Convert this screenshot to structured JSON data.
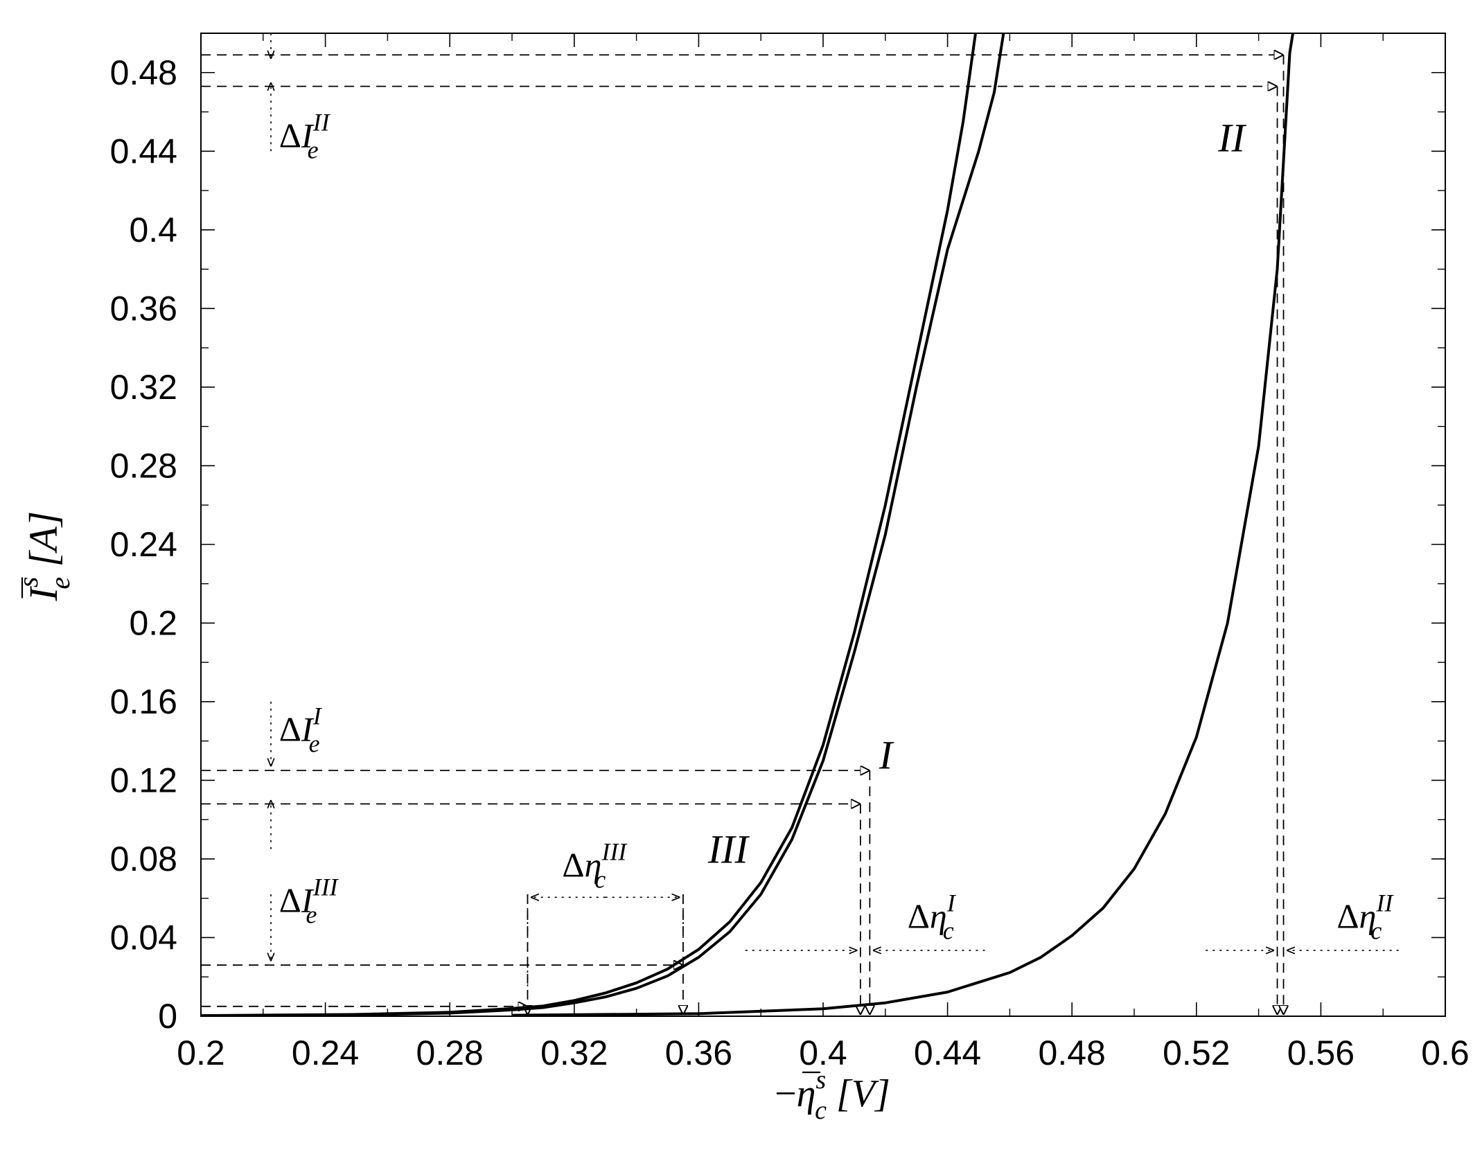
{
  "chart_data": {
    "type": "line",
    "xlim": [
      0.2,
      0.6
    ],
    "ylim": [
      0,
      0.5
    ],
    "grid": false,
    "legend": "none",
    "x_ticks": [
      0.2,
      0.24,
      0.28,
      0.32,
      0.36,
      0.4,
      0.44,
      0.48,
      0.52,
      0.56,
      0.6
    ],
    "x_tick_labels": [
      "0.2",
      "0.24",
      "0.28",
      "0.32",
      "0.36",
      "0.4",
      "0.44",
      "0.48",
      "0.52",
      "0.56",
      "0.6"
    ],
    "y_ticks": [
      0,
      0.04,
      0.08,
      0.12,
      0.16,
      0.2,
      0.24,
      0.28,
      0.32,
      0.36,
      0.4,
      0.44,
      0.48
    ],
    "y_tick_labels": [
      "0",
      "0.04",
      "0.08",
      "0.12",
      "0.16",
      "0.2",
      "0.24",
      "0.28",
      "0.32",
      "0.36",
      "0.4",
      "0.44",
      "0.48"
    ],
    "xlabel": {
      "prefix": "−",
      "symbol": "η",
      "superscript": "s",
      "subscript": "c",
      "unit": "[V]"
    },
    "ylabel": {
      "symbol": "I",
      "superscript": "s",
      "subscript": "e",
      "unit": "[A]"
    },
    "series": [
      {
        "name": "I",
        "label_at": [
          0.418,
          0.126
        ],
        "points": [
          [
            0.2,
            0.0002
          ],
          [
            0.25,
            0.0007
          ],
          [
            0.28,
            0.0016
          ],
          [
            0.3,
            0.0032
          ],
          [
            0.31,
            0.0044
          ],
          [
            0.32,
            0.0068
          ],
          [
            0.33,
            0.0098
          ],
          [
            0.34,
            0.0142
          ],
          [
            0.35,
            0.0205
          ],
          [
            0.36,
            0.03
          ],
          [
            0.37,
            0.043
          ],
          [
            0.38,
            0.062
          ],
          [
            0.39,
            0.09
          ],
          [
            0.4,
            0.13
          ],
          [
            0.41,
            0.185
          ],
          [
            0.42,
            0.245
          ],
          [
            0.43,
            0.32
          ],
          [
            0.44,
            0.39
          ],
          [
            0.45,
            0.44
          ],
          [
            0.455,
            0.47
          ],
          [
            0.458,
            0.5
          ]
        ]
      },
      {
        "name": "II",
        "label_at": [
          0.527,
          0.44
        ],
        "points": [
          [
            0.3,
            0.0005
          ],
          [
            0.36,
            0.0013
          ],
          [
            0.4,
            0.0038
          ],
          [
            0.42,
            0.0068
          ],
          [
            0.44,
            0.0123
          ],
          [
            0.46,
            0.0222
          ],
          [
            0.47,
            0.03
          ],
          [
            0.48,
            0.041
          ],
          [
            0.49,
            0.055
          ],
          [
            0.5,
            0.075
          ],
          [
            0.51,
            0.103
          ],
          [
            0.52,
            0.142
          ],
          [
            0.53,
            0.2
          ],
          [
            0.54,
            0.29
          ],
          [
            0.546,
            0.38
          ],
          [
            0.55,
            0.49
          ],
          [
            0.551,
            0.5
          ]
        ]
      },
      {
        "name": "III",
        "label_at": [
          0.363,
          0.078
        ],
        "points": [
          [
            0.2,
            0.0003
          ],
          [
            0.25,
            0.0009
          ],
          [
            0.28,
            0.002
          ],
          [
            0.3,
            0.0039
          ],
          [
            0.31,
            0.0052
          ],
          [
            0.32,
            0.008
          ],
          [
            0.33,
            0.0118
          ],
          [
            0.34,
            0.017
          ],
          [
            0.35,
            0.024
          ],
          [
            0.36,
            0.034
          ],
          [
            0.37,
            0.048
          ],
          [
            0.38,
            0.068
          ],
          [
            0.39,
            0.096
          ],
          [
            0.4,
            0.138
          ],
          [
            0.41,
            0.195
          ],
          [
            0.42,
            0.26
          ],
          [
            0.43,
            0.335
          ],
          [
            0.44,
            0.41
          ],
          [
            0.445,
            0.455
          ],
          [
            0.449,
            0.5
          ]
        ]
      }
    ],
    "annotations": {
      "h_lines": [
        0.489,
        0.473,
        0.125,
        0.108,
        0.026,
        0.005
      ],
      "v_lines": [
        {
          "x": 0.305,
          "y_top": 0.062
        },
        {
          "x": 0.355,
          "y_top": 0.062
        },
        {
          "x": 0.412,
          "y_top": 0.108
        },
        {
          "x": 0.415,
          "y_top": 0.125
        },
        {
          "x": 0.546,
          "y_top": 0.473
        },
        {
          "x": 0.548,
          "y_top": 0.489
        }
      ],
      "delta_labels": [
        {
          "id": "dIe_II",
          "text": "ΔI",
          "sub": "e",
          "sup": "II",
          "x": 0.222,
          "y": 0.442
        },
        {
          "id": "dIe_I",
          "text": "ΔI",
          "sub": "e",
          "sup": "I",
          "x": 0.222,
          "y": 0.14
        },
        {
          "id": "dIe_III",
          "text": "ΔI",
          "sub": "e",
          "sup": "III",
          "x": 0.222,
          "y": 0.053
        },
        {
          "id": "deta_III",
          "text": "Δη",
          "sub": "c",
          "sup": "III",
          "x": 0.313,
          "y": 0.071
        },
        {
          "id": "deta_I",
          "text": "Δη",
          "sub": "c",
          "sup": "I",
          "x": 0.424,
          "y": 0.045
        },
        {
          "id": "deta_II",
          "text": "Δη",
          "sub": "c",
          "sup": "II",
          "x": 0.562,
          "y": 0.045
        }
      ]
    }
  }
}
